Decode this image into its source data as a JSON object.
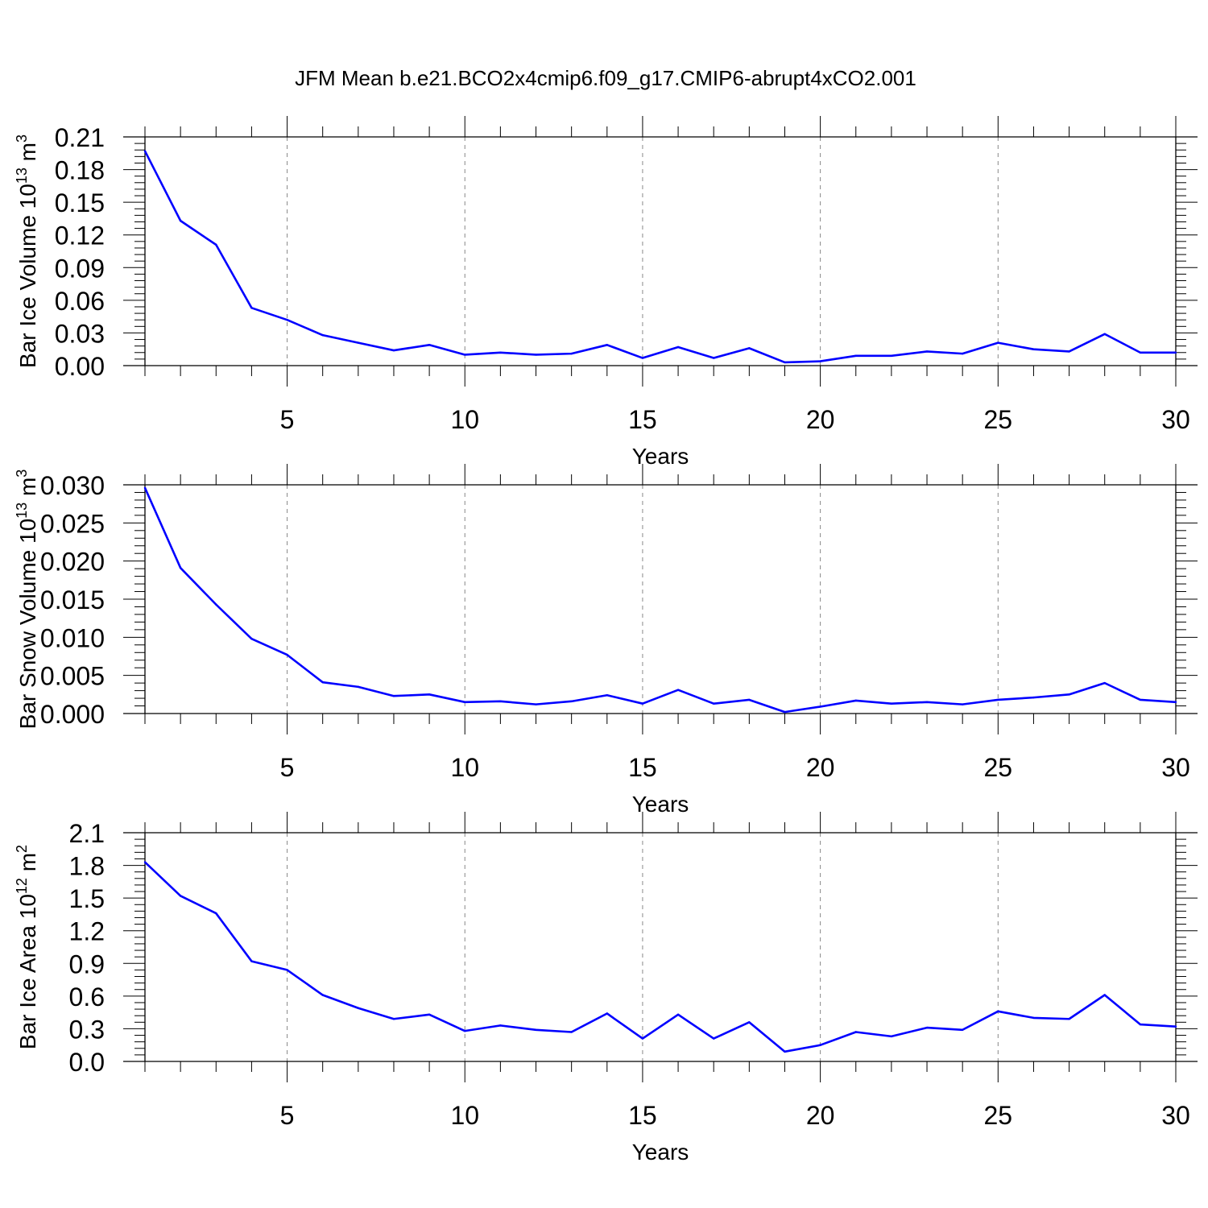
{
  "figure": {
    "title": "JFM Mean b.e21.BCO2x4cmip6.f09_g17.CMIP6-abrupt4xCO2.001",
    "line_color": "#0000ff"
  },
  "chart_data": [
    {
      "type": "line",
      "title": "",
      "xlabel": "Years",
      "ylabel": {
        "text": "Bar Ice Volume 10",
        "sup": "13",
        "unit": " m",
        "unit_sup": "3"
      },
      "xlim": [
        1,
        30
      ],
      "ylim": [
        0,
        0.21
      ],
      "xticks": [
        "5",
        "10",
        "15",
        "20",
        "25",
        "30"
      ],
      "yticks": [
        "0.00",
        "0.03",
        "0.06",
        "0.09",
        "0.12",
        "0.15",
        "0.18",
        "0.21"
      ],
      "grid": "vertical dashed at major x ticks",
      "series": [
        {
          "x": [
            1,
            2,
            3,
            4,
            5,
            6,
            7,
            8,
            9,
            10,
            11,
            12,
            13,
            14,
            15,
            16,
            17,
            18,
            19,
            20,
            21,
            22,
            23,
            24,
            25,
            26,
            27,
            28,
            29,
            30
          ],
          "values": [
            0.197,
            0.133,
            0.111,
            0.053,
            0.042,
            0.028,
            0.021,
            0.014,
            0.019,
            0.01,
            0.012,
            0.01,
            0.011,
            0.019,
            0.007,
            0.017,
            0.007,
            0.016,
            0.003,
            0.004,
            0.009,
            0.009,
            0.013,
            0.011,
            0.021,
            0.015,
            0.013,
            0.029,
            0.012,
            0.012
          ]
        }
      ]
    },
    {
      "type": "line",
      "title": "",
      "xlabel": "Years",
      "ylabel": {
        "text": "Bar Snow Volume 10",
        "sup": "13",
        "unit": " m",
        "unit_sup": "3"
      },
      "xlim": [
        1,
        30
      ],
      "ylim": [
        0,
        0.03
      ],
      "xticks": [
        "5",
        "10",
        "15",
        "20",
        "25",
        "30"
      ],
      "yticks": [
        "0.000",
        "0.005",
        "0.010",
        "0.015",
        "0.020",
        "0.025",
        "0.030"
      ],
      "grid": "vertical dashed at major x ticks",
      "series": [
        {
          "x": [
            1,
            2,
            3,
            4,
            5,
            6,
            7,
            8,
            9,
            10,
            11,
            12,
            13,
            14,
            15,
            16,
            17,
            18,
            19,
            20,
            21,
            22,
            23,
            24,
            25,
            26,
            27,
            28,
            29,
            30
          ],
          "values": [
            0.0296,
            0.0191,
            0.0143,
            0.0098,
            0.0077,
            0.0041,
            0.0035,
            0.0023,
            0.0025,
            0.0015,
            0.0016,
            0.0012,
            0.0016,
            0.0024,
            0.0013,
            0.0031,
            0.0013,
            0.0018,
            0.0002,
            0.0009,
            0.0017,
            0.0013,
            0.0015,
            0.0012,
            0.0018,
            0.0021,
            0.0025,
            0.004,
            0.0018,
            0.0015
          ]
        }
      ]
    },
    {
      "type": "line",
      "title": "",
      "xlabel": "Years",
      "ylabel": {
        "text": "Bar Ice Area 10",
        "sup": "12",
        "unit": " m",
        "unit_sup": "2"
      },
      "xlim": [
        1,
        30
      ],
      "ylim": [
        0,
        2.1
      ],
      "xticks": [
        "5",
        "10",
        "15",
        "20",
        "25",
        "30"
      ],
      "yticks": [
        "0.0",
        "0.3",
        "0.6",
        "0.9",
        "1.2",
        "1.5",
        "1.8",
        "2.1"
      ],
      "grid": "vertical dashed at major x ticks",
      "series": [
        {
          "x": [
            1,
            2,
            3,
            4,
            5,
            6,
            7,
            8,
            9,
            10,
            11,
            12,
            13,
            14,
            15,
            16,
            17,
            18,
            19,
            20,
            21,
            22,
            23,
            24,
            25,
            26,
            27,
            28,
            29,
            30
          ],
          "values": [
            1.83,
            1.52,
            1.36,
            0.92,
            0.84,
            0.61,
            0.49,
            0.39,
            0.43,
            0.28,
            0.33,
            0.29,
            0.27,
            0.44,
            0.21,
            0.43,
            0.21,
            0.36,
            0.09,
            0.15,
            0.27,
            0.23,
            0.31,
            0.29,
            0.46,
            0.4,
            0.39,
            0.61,
            0.34,
            0.32
          ]
        }
      ]
    }
  ]
}
